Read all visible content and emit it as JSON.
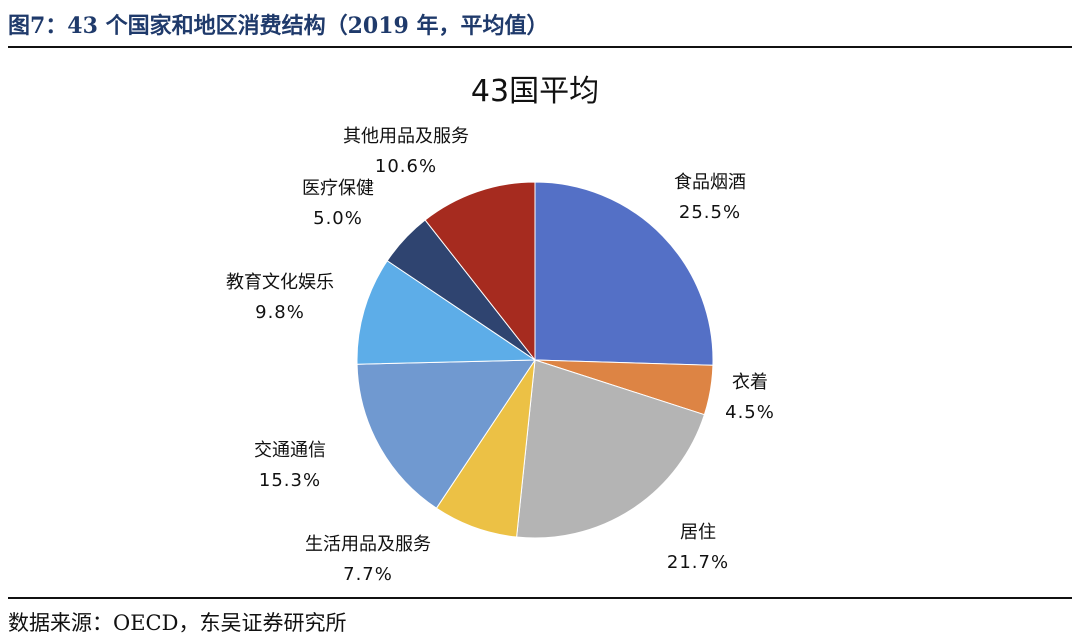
{
  "figure": {
    "caption": "图7：43 个国家和地区消费结构（2019 年，平均值）",
    "source": "数据来源：OECD，东吴证券研究所"
  },
  "chart_data": {
    "type": "pie",
    "title": "43国平均",
    "start": "12 o'clock",
    "direction": "clockwise",
    "slices": [
      {
        "label": "食品烟酒",
        "value": 25.5,
        "value_label": "25.5%",
        "color": "#5470c6"
      },
      {
        "label": "衣着",
        "value": 4.5,
        "value_label": "4.5%",
        "color": "#dd8444"
      },
      {
        "label": "居住",
        "value": 21.7,
        "value_label": "21.7%",
        "color": "#b4b4b4"
      },
      {
        "label": "生活用品及服务",
        "value": 7.7,
        "value_label": "7.7%",
        "color": "#ecc145"
      },
      {
        "label": "交通通信",
        "value": 15.3,
        "value_label": "15.3%",
        "color": "#7099d0"
      },
      {
        "label": "教育文化娱乐",
        "value": 9.8,
        "value_label": "9.8%",
        "color": "#5dade8"
      },
      {
        "label": "医疗保健",
        "value": 5.0,
        "value_label": "5.0%",
        "color": "#2f4470"
      },
      {
        "label": "其他用品及服务",
        "value": 10.6,
        "value_label": "10.6%",
        "color": "#a62b1f"
      }
    ]
  }
}
